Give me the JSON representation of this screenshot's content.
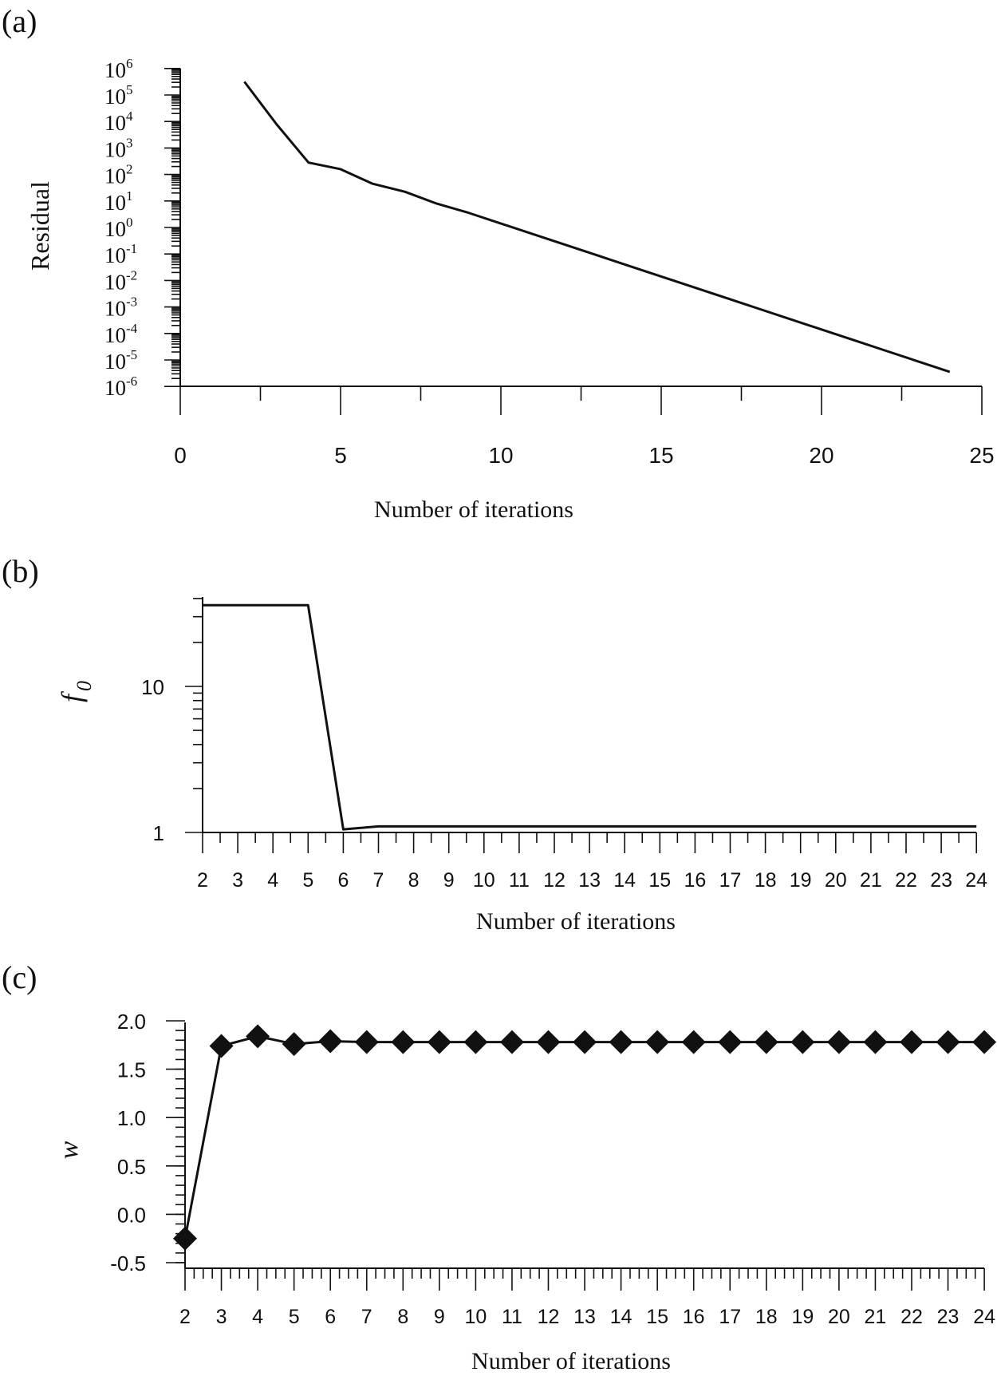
{
  "chart_data": [
    {
      "panel_label": "(a)",
      "type": "line",
      "title": "",
      "xlabel": "Number of iterations",
      "ylabel": "Residual",
      "xlim": [
        0,
        25
      ],
      "ylim_log10": [
        -6,
        6
      ],
      "y_scale": "log",
      "x_ticks": [
        "0",
        "5",
        "10",
        "15",
        "20",
        "25"
      ],
      "y_ticks": [
        {
          "base": "10",
          "exp": "6"
        },
        {
          "base": "10",
          "exp": "5"
        },
        {
          "base": "10",
          "exp": "4"
        },
        {
          "base": "10",
          "exp": "3"
        },
        {
          "base": "10",
          "exp": "2"
        },
        {
          "base": "10",
          "exp": "1"
        },
        {
          "base": "10",
          "exp": "0"
        },
        {
          "base": "10",
          "exp": "-1"
        },
        {
          "base": "10",
          "exp": "-2"
        },
        {
          "base": "10",
          "exp": "-3"
        },
        {
          "base": "10",
          "exp": "-4"
        },
        {
          "base": "10",
          "exp": "-5"
        },
        {
          "base": "10",
          "exp": "-6"
        }
      ],
      "series": [
        {
          "name": "Residual",
          "x": [
            2,
            3,
            4,
            5,
            6,
            7,
            8,
            9,
            10,
            11,
            12,
            13,
            14,
            15,
            16,
            17,
            18,
            19,
            20,
            21,
            22,
            23,
            24
          ],
          "log10_y": [
            5.5,
            3.9,
            2.45,
            2.2,
            1.65,
            1.35,
            0.9,
            0.55,
            0.15,
            -0.25,
            -0.65,
            -1.05,
            -1.45,
            -1.85,
            -2.25,
            -2.65,
            -3.05,
            -3.45,
            -3.85,
            -4.25,
            -4.65,
            -5.05,
            -5.45
          ]
        }
      ]
    },
    {
      "panel_label": "(b)",
      "type": "line",
      "title": "",
      "xlabel": "Number of iterations",
      "ylabel": "f",
      "ylabel_sub": "0",
      "y_scale": "log",
      "xlim": [
        2,
        24
      ],
      "ylim": [
        1,
        40
      ],
      "x_ticks": [
        "2",
        "3",
        "4",
        "5",
        "6",
        "7",
        "8",
        "9",
        "10",
        "11",
        "12",
        "13",
        "14",
        "15",
        "16",
        "17",
        "18",
        "19",
        "20",
        "21",
        "22",
        "23",
        "24"
      ],
      "y_ticks": [
        "10",
        "1"
      ],
      "series": [
        {
          "name": "f0",
          "x": [
            2,
            3,
            4,
            5,
            6,
            7,
            8,
            9,
            10,
            11,
            12,
            13,
            14,
            15,
            16,
            17,
            18,
            19,
            20,
            21,
            22,
            23,
            24
          ],
          "y": [
            36,
            36,
            36,
            36,
            1.05,
            1.1,
            1.1,
            1.1,
            1.1,
            1.1,
            1.1,
            1.1,
            1.1,
            1.1,
            1.1,
            1.1,
            1.1,
            1.1,
            1.1,
            1.1,
            1.1,
            1.1,
            1.1
          ]
        }
      ]
    },
    {
      "panel_label": "(c)",
      "type": "line",
      "title": "",
      "xlabel": "Number of iterations",
      "ylabel": "w",
      "xlim": [
        2,
        24
      ],
      "ylim": [
        -0.5,
        2.0
      ],
      "x_ticks": [
        "2",
        "3",
        "4",
        "5",
        "6",
        "7",
        "8",
        "9",
        "10",
        "11",
        "12",
        "13",
        "14",
        "15",
        "16",
        "17",
        "18",
        "19",
        "20",
        "21",
        "22",
        "23",
        "24"
      ],
      "y_ticks": [
        "2.0",
        "1.5",
        "1.0",
        "0.5",
        "0.0",
        "-0.5"
      ],
      "series": [
        {
          "name": "w",
          "marker": "diamond",
          "x": [
            2,
            3,
            4,
            5,
            6,
            7,
            8,
            9,
            10,
            11,
            12,
            13,
            14,
            15,
            16,
            17,
            18,
            19,
            20,
            21,
            22,
            23,
            24
          ],
          "y": [
            -0.25,
            1.74,
            1.84,
            1.76,
            1.79,
            1.78,
            1.78,
            1.78,
            1.78,
            1.78,
            1.78,
            1.78,
            1.78,
            1.78,
            1.78,
            1.78,
            1.78,
            1.78,
            1.78,
            1.78,
            1.78,
            1.78,
            1.78
          ]
        }
      ]
    }
  ]
}
